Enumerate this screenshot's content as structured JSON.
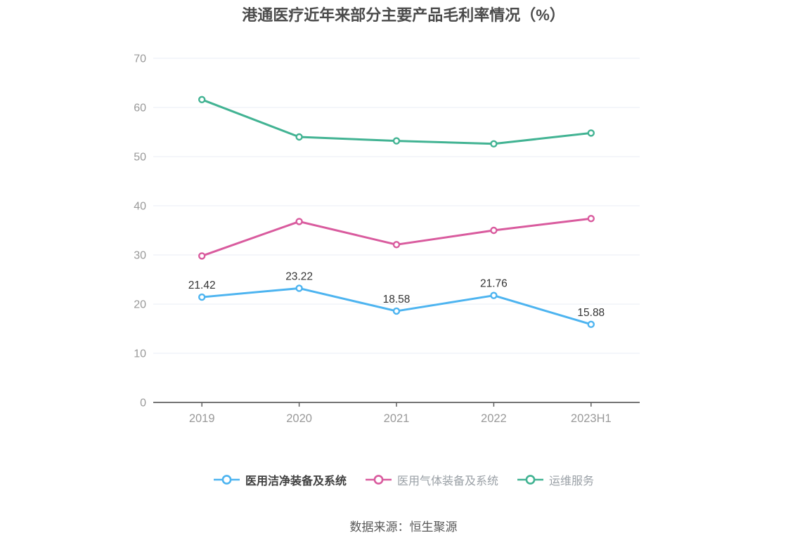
{
  "title": "港通医疗近年来部分主要产品毛利率情况（%）",
  "source_note": "数据来源：恒生聚源",
  "chart_data": {
    "type": "line",
    "categories": [
      "2019",
      "2020",
      "2021",
      "2022",
      "2023H1"
    ],
    "series": [
      {
        "name": "医用洁净装备及系统",
        "color": "#4db4f0",
        "values": [
          21.42,
          23.22,
          18.58,
          21.76,
          15.88
        ],
        "show_labels": true
      },
      {
        "name": "医用气体装备及系统",
        "color": "#d95b9e",
        "values": [
          29.8,
          36.8,
          32.1,
          35.0,
          37.4
        ],
        "show_labels": false
      },
      {
        "name": "运维服务",
        "color": "#42b393",
        "values": [
          61.6,
          54.0,
          53.2,
          52.6,
          54.8
        ],
        "show_labels": false
      }
    ],
    "ylim": [
      0,
      70
    ],
    "yticks": [
      0,
      10,
      20,
      30,
      40,
      50,
      60,
      70
    ],
    "grid": true,
    "legend_position": "bottom",
    "xlabel": "",
    "ylabel": "",
    "colors": {
      "grid": "#e8ecf4",
      "axis": "#606060",
      "tick_label": "#999999",
      "data_label": "#333333",
      "marker_fill": "#ffffff"
    }
  }
}
